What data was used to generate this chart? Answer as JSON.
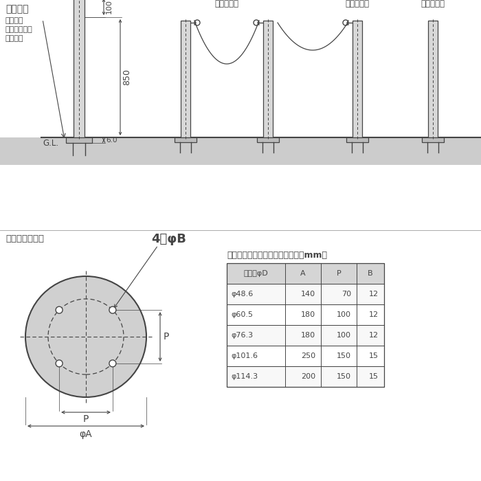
{
  "title": "製品図面",
  "bg_color": "#ffffff",
  "line_color": "#444444",
  "pole_fill": "#d8d8d8",
  "ground_fill": "#cccccc",
  "pole_labels": [
    "両フック付",
    "片フック付",
    "フックなし"
  ],
  "dim_850": "850",
  "dim_100": "100",
  "dim_6": "6.0",
  "phi_d_label": "φD",
  "anchor_text_1": "あと施工",
  "anchor_text_2": "アンカー固定",
  "anchor_text_3": "（別途）",
  "gl_text": "G.L.",
  "base_plate_label": "ベースプレート",
  "four_phi_b": "4－φB",
  "p_label": "P",
  "phi_a_label": "φA",
  "table_title": "ベースプレート寸法表",
  "table_unit": "＜単位：mm＞",
  "table_headers": [
    "支柱径φD",
    "A",
    "P",
    "B"
  ],
  "table_data": [
    [
      "φ48.6",
      "140",
      "70",
      "12"
    ],
    [
      "φ60.5",
      "180",
      "100",
      "12"
    ],
    [
      "φ76.3",
      "180",
      "100",
      "12"
    ],
    [
      "φ101.6",
      "250",
      "150",
      "15"
    ],
    [
      "φ114.3",
      "200",
      "150",
      "15"
    ]
  ]
}
